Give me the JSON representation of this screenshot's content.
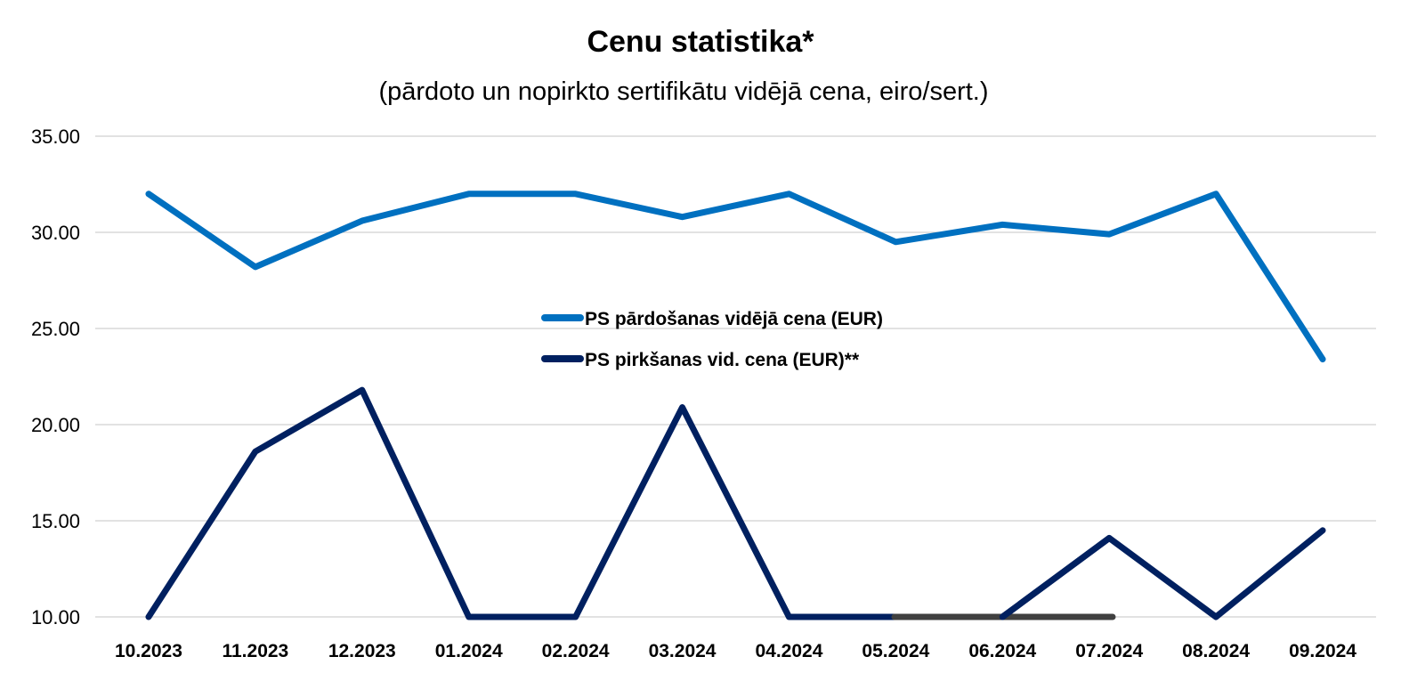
{
  "chart_data": {
    "type": "line",
    "title": "Cenu statistika*",
    "subtitle": "(pārdoto un nopirkto sertifikātu vidējā cena, eiro/sert.)",
    "xlabel": "",
    "ylabel": "",
    "categories": [
      "10.2023",
      "11.2023",
      "12.2023",
      "01.2024",
      "02.2024",
      "03.2024",
      "04.2024",
      "05.2024",
      "06.2024",
      "07.2024",
      "08.2024",
      "09.2024"
    ],
    "ylim": [
      10,
      35
    ],
    "yticks": [
      "10.00",
      "15.00",
      "20.00",
      "25.00",
      "30.00",
      "35.00"
    ],
    "grid": true,
    "legend_position": "center",
    "series": [
      {
        "name": "PS pārdošanas vidējā cena (EUR)",
        "color": "#0070C0",
        "values": [
          32.0,
          28.2,
          30.6,
          32.0,
          32.0,
          30.8,
          32.0,
          29.5,
          30.4,
          29.9,
          32.0,
          23.4
        ]
      },
      {
        "name": "PS pirkšanas vid. cena (EUR)**",
        "color": "#002060",
        "values": [
          10.0,
          18.6,
          21.8,
          10.0,
          10.0,
          20.9,
          10.0,
          10.0,
          10.0,
          14.1,
          10.0,
          14.5
        ]
      }
    ]
  }
}
